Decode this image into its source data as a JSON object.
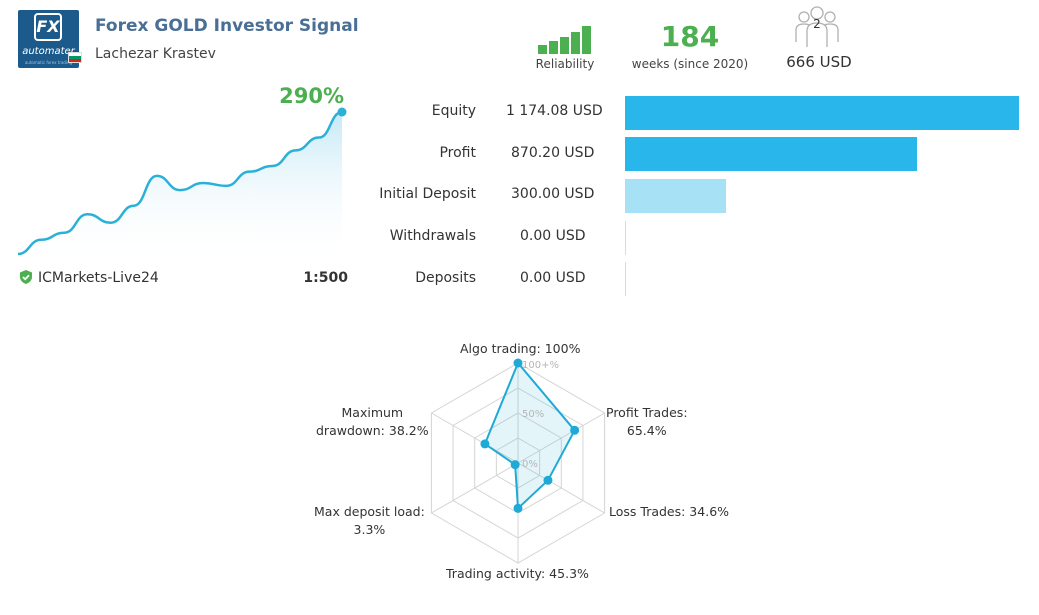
{
  "header": {
    "logo_text": "automater",
    "logo_tagline": "automatic forex trading",
    "logo_mark": "FX",
    "title": "Forex GOLD Investor Signal",
    "author": "Lachezar Krastev",
    "author_flag": "bulgaria-flag"
  },
  "stats_top": {
    "reliability_label": "Reliability",
    "reliability_bars": 5,
    "weeks_value": "184",
    "weeks_label": "weeks (since 2020)",
    "subscribers_count": "2",
    "price": "666 USD"
  },
  "growth": {
    "percent": "290%",
    "line_color": "#2bb0d8",
    "points": [
      0,
      10,
      15,
      28,
      22,
      34,
      55,
      45,
      50,
      48,
      58,
      62,
      73,
      82,
      100
    ]
  },
  "account": {
    "broker": "ICMarkets-Live24",
    "leverage": "1:500",
    "verified_color": "#4caf50"
  },
  "financials": [
    {
      "label": "Equity",
      "value": "1 174.08 USD",
      "amount": 1174.08,
      "color": "#29b6ea"
    },
    {
      "label": "Profit",
      "value": "870.20 USD",
      "amount": 870.2,
      "color": "#29b6ea"
    },
    {
      "label": "Initial Deposit",
      "value": "300.00 USD",
      "amount": 300.0,
      "color": "#a6e1f6"
    },
    {
      "label": "Withdrawals",
      "value": "0.00 USD",
      "amount": 0,
      "color": "#a6e1f6"
    },
    {
      "label": "Deposits",
      "value": "0.00 USD",
      "amount": 0,
      "color": "#a6e1f6"
    }
  ],
  "radar": {
    "scale_labels": [
      "100+%",
      "50%",
      "0%"
    ],
    "axes": [
      {
        "label": "Algo trading: 100%",
        "value": 100
      },
      {
        "label": "Profit Trades:\n65.4%",
        "value": 65.4
      },
      {
        "label": "Loss Trades: 34.6%",
        "value": 34.6
      },
      {
        "label": "Trading activity: 45.3%",
        "value": 45.3
      },
      {
        "label": "Max deposit load:\n3.3%",
        "value": 3.3
      },
      {
        "label": "Maximum\ndrawdown: 38.2%",
        "value": 38.2
      }
    ],
    "color": "#1fa9d6"
  }
}
